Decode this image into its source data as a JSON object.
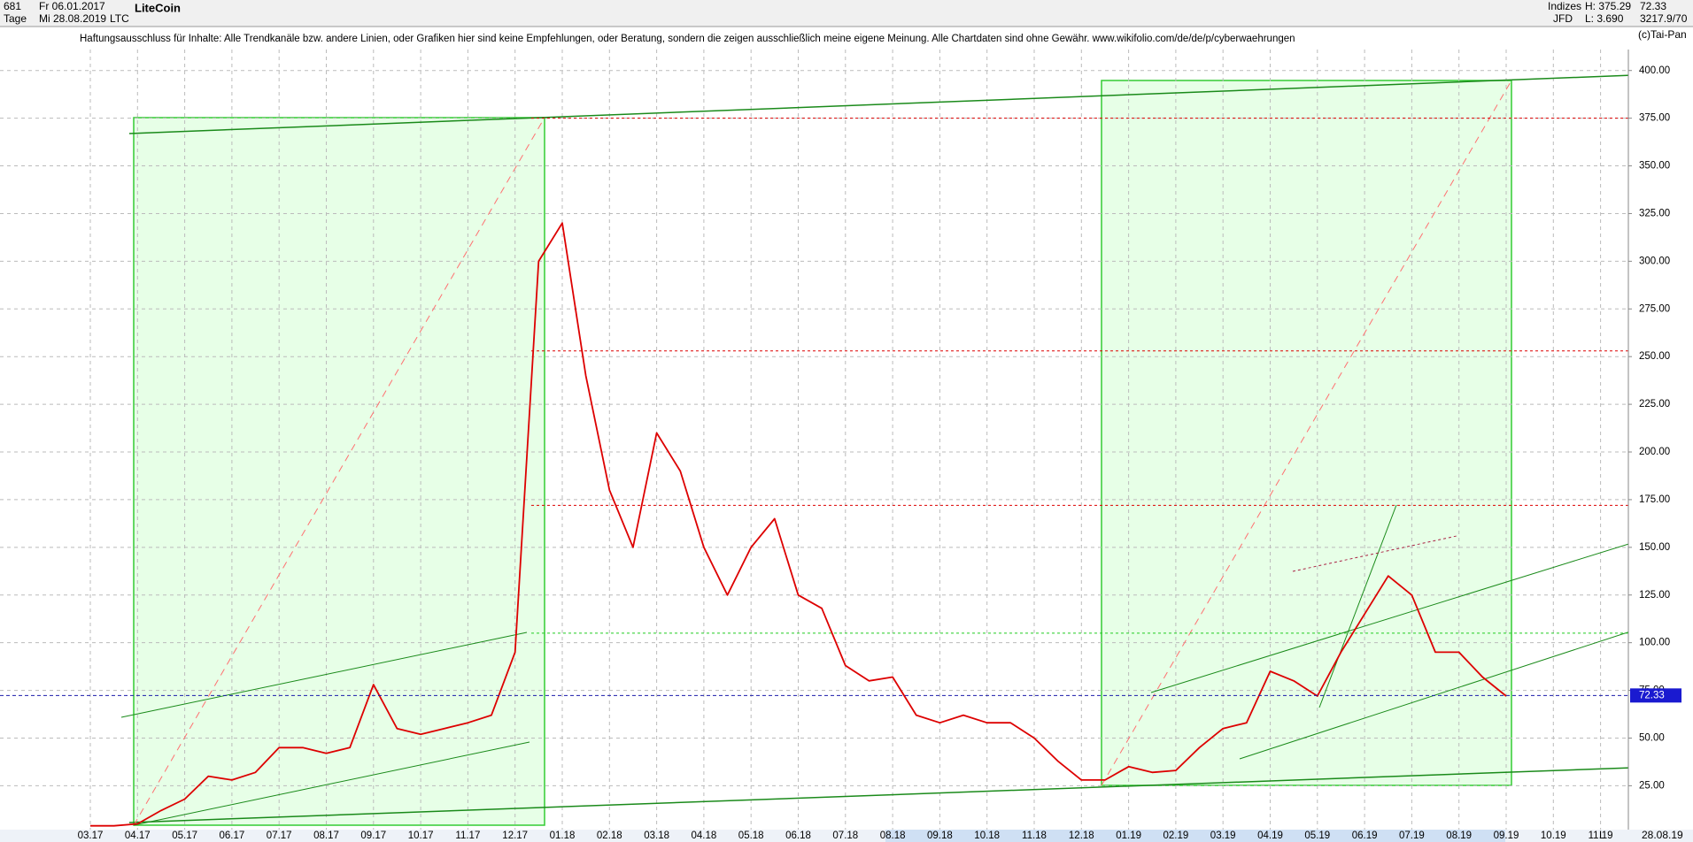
{
  "chart_data": {
    "type": "line",
    "title": "LiteCoin",
    "header": {
      "count": "681",
      "period": "Tage",
      "from": "Fr 06.01.2017",
      "to": "Mi 28.08.2019",
      "symbol": "LTC",
      "group": "Indizes",
      "source": "JFD",
      "high": "H: 375.29",
      "low": "L: 3.690",
      "extra": "3217.9/70",
      "copyright": "(c)Tai-Pan"
    },
    "disclaimer": "Haftungsausschluss für Inhalte: Alle Trendkanäle bzw. andere Linien, oder Grafiken hier sind keine Empfehlungen, oder Beratung, sondern die zeigen ausschließlich meine eigene Meinung. Alle Chartdaten sind ohne Gewähr.  www.wikifolio.com/de/de/p/cyberwaehrungen",
    "footer_date": "28.08.19",
    "footer_mode": "L",
    "categories": [
      "03.17",
      null,
      "04.17",
      null,
      "05.17",
      null,
      "06.17",
      null,
      "07.17",
      null,
      "08.17",
      null,
      "09.17",
      null,
      "10.17",
      null,
      "11.17",
      null,
      "12.17",
      null,
      "01.18",
      null,
      "02.18",
      null,
      "03.18",
      null,
      "04.18",
      null,
      "05.18",
      null,
      "06.18",
      null,
      "07.18",
      null,
      "08.18",
      null,
      "09.18",
      null,
      "10.18",
      null,
      "11.18",
      null,
      "12.18",
      null,
      "01.19",
      null,
      "02.19",
      null,
      "03.19",
      null,
      "04.19",
      null,
      "05.19",
      null,
      "06.19",
      null,
      "07.19",
      null,
      "08.19",
      null,
      "09.19",
      null,
      "10.19",
      null,
      "11.19",
      null
    ],
    "values": [
      4,
      4,
      5,
      12,
      18,
      30,
      28,
      32,
      45,
      45,
      42,
      45,
      78,
      55,
      52,
      55,
      58,
      62,
      95,
      300,
      320,
      240,
      180,
      150,
      210,
      190,
      150,
      125,
      150,
      165,
      125,
      118,
      88,
      80,
      82,
      62,
      58,
      62,
      58,
      58,
      50,
      38,
      28,
      28,
      35,
      32,
      33,
      45,
      55,
      58,
      85,
      80,
      72,
      95,
      115,
      135,
      125,
      95,
      95,
      82,
      72,
      null,
      null,
      null,
      null,
      null
    ],
    "color": "#dd0000",
    "last_price": 72.33,
    "levels": [
      375,
      253,
      172,
      105
    ],
    "ylim": [
      2,
      411
    ],
    "yticks": [
      {
        "value": 25,
        "label": "25.00"
      },
      {
        "value": 50,
        "label": "50.00"
      },
      {
        "value": 75,
        "label": "75.00"
      },
      {
        "value": 100,
        "label": "100.00"
      },
      {
        "value": 125,
        "label": "125.00"
      },
      {
        "value": 150,
        "label": "150.00"
      },
      {
        "value": 175,
        "label": "175.00"
      },
      {
        "value": 200,
        "label": "200.00"
      },
      {
        "value": 225,
        "label": "225.00"
      },
      {
        "value": 250,
        "label": "250.00"
      },
      {
        "value": 275,
        "label": "275.00"
      },
      {
        "value": 300,
        "label": "300.00"
      },
      {
        "value": 325,
        "label": "325.00"
      },
      {
        "value": 350,
        "label": "350.00"
      },
      {
        "value": 375,
        "label": "375.00"
      },
      {
        "value": 400,
        "label": "400.00"
      }
    ],
    "grid": true
  }
}
